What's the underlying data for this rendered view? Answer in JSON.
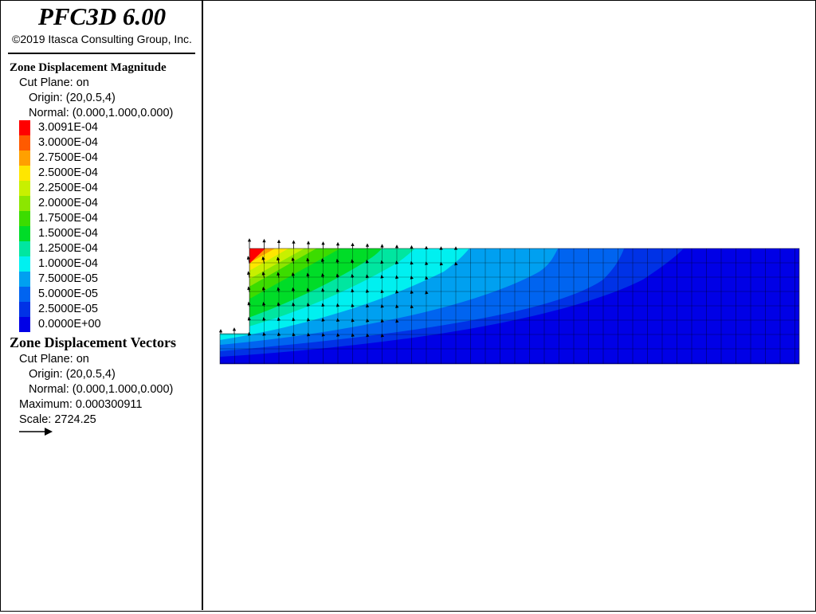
{
  "app": {
    "title": "PFC3D 6.00",
    "copyright": "©2019 Itasca Consulting Group, Inc."
  },
  "contour_legend": {
    "heading": "Zone Displacement Magnitude",
    "cut_plane": "Cut Plane: on",
    "origin": "Origin: (20,0.5,4)",
    "normal": "Normal: (0.000,1.000,0.000)",
    "scale": [
      {
        "label": "3.0091E-04",
        "color": "#ff0000"
      },
      {
        "label": "3.0000E-04",
        "color": "#ff5a00"
      },
      {
        "label": "2.7500E-04",
        "color": "#ffa000"
      },
      {
        "label": "2.5000E-04",
        "color": "#ffe600"
      },
      {
        "label": "2.2500E-04",
        "color": "#c8f000"
      },
      {
        "label": "2.0000E-04",
        "color": "#8ce600"
      },
      {
        "label": "1.7500E-04",
        "color": "#3cdc00"
      },
      {
        "label": "1.5000E-04",
        "color": "#00dc28"
      },
      {
        "label": "1.2500E-04",
        "color": "#00e6a0"
      },
      {
        "label": "1.0000E-04",
        "color": "#00f0f0"
      },
      {
        "label": "7.5000E-05",
        "color": "#00a0f0"
      },
      {
        "label": "5.0000E-05",
        "color": "#0064f0"
      },
      {
        "label": "2.5000E-05",
        "color": "#0032e6"
      },
      {
        "label": "0.0000E+00",
        "color": "#0000e6"
      }
    ]
  },
  "vector_legend": {
    "heading": "Zone Displacement Vectors",
    "cut_plane": "Cut Plane: on",
    "origin": "Origin: (20,0.5,4)",
    "normal": "Normal: (0.000,1.000,0.000)",
    "maximum": "Maximum: 0.000300911",
    "scale": "Scale: 2724.25"
  }
}
